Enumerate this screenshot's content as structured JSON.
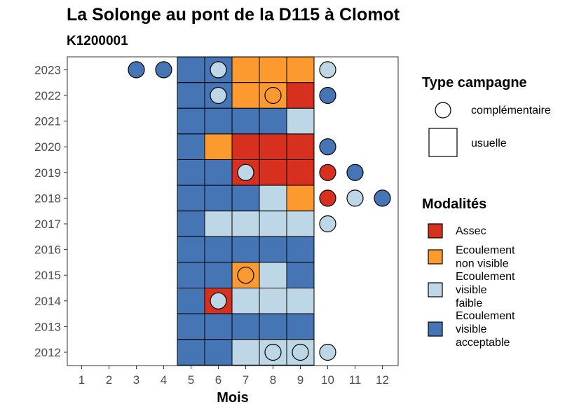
{
  "chart_data": {
    "type": "heatmap",
    "title": "La Solonge au pont de la D115 à Clomot",
    "subtitle": "K1200001",
    "xlabel": "Mois",
    "ylabel": "",
    "x_categories": [
      "1",
      "2",
      "3",
      "4",
      "5",
      "6",
      "7",
      "8",
      "9",
      "10",
      "11",
      "12"
    ],
    "y_categories": [
      "2012",
      "2013",
      "2014",
      "2015",
      "2016",
      "2017",
      "2018",
      "2019",
      "2020",
      "2021",
      "2022",
      "2023"
    ],
    "colors": {
      "assec": "#d7301f",
      "non_visible": "#fd9a2f",
      "faible": "#bdd7e7",
      "acceptable": "#4575b4"
    },
    "legend_shape": {
      "title": "Type campagne",
      "items": [
        {
          "shape": "circle",
          "label": "complémentaire"
        },
        {
          "shape": "square",
          "label": "usuelle"
        }
      ]
    },
    "legend_fill": {
      "title": "Modalités",
      "items": [
        {
          "key": "assec",
          "lines": [
            "Assec"
          ]
        },
        {
          "key": "non_visible",
          "lines": [
            "Ecoulement",
            "non visible"
          ]
        },
        {
          "key": "faible",
          "lines": [
            "Ecoulement",
            "visible",
            "faible"
          ]
        },
        {
          "key": "acceptable",
          "lines": [
            "Ecoulement",
            "visible",
            "acceptable"
          ]
        }
      ]
    },
    "observations": [
      {
        "year": 2023,
        "month": 3,
        "type": "complémentaire",
        "modalite": "acceptable"
      },
      {
        "year": 2023,
        "month": 4,
        "type": "complémentaire",
        "modalite": "acceptable"
      },
      {
        "year": 2023,
        "month": 5,
        "type": "usuelle",
        "modalite": "acceptable"
      },
      {
        "year": 2023,
        "month": 6,
        "type": "usuelle",
        "modalite": "acceptable"
      },
      {
        "year": 2023,
        "month": 6,
        "type": "complémentaire",
        "modalite": "faible"
      },
      {
        "year": 2023,
        "month": 7,
        "type": "usuelle",
        "modalite": "non_visible"
      },
      {
        "year": 2023,
        "month": 8,
        "type": "usuelle",
        "modalite": "non_visible"
      },
      {
        "year": 2023,
        "month": 9,
        "type": "usuelle",
        "modalite": "non_visible"
      },
      {
        "year": 2023,
        "month": 10,
        "type": "complémentaire",
        "modalite": "faible"
      },
      {
        "year": 2022,
        "month": 5,
        "type": "usuelle",
        "modalite": "acceptable"
      },
      {
        "year": 2022,
        "month": 6,
        "type": "usuelle",
        "modalite": "acceptable"
      },
      {
        "year": 2022,
        "month": 6,
        "type": "complémentaire",
        "modalite": "faible"
      },
      {
        "year": 2022,
        "month": 7,
        "type": "usuelle",
        "modalite": "non_visible"
      },
      {
        "year": 2022,
        "month": 8,
        "type": "usuelle",
        "modalite": "non_visible"
      },
      {
        "year": 2022,
        "month": 8,
        "type": "complémentaire",
        "modalite": "non_visible"
      },
      {
        "year": 2022,
        "month": 9,
        "type": "usuelle",
        "modalite": "assec"
      },
      {
        "year": 2022,
        "month": 10,
        "type": "complémentaire",
        "modalite": "acceptable"
      },
      {
        "year": 2021,
        "month": 5,
        "type": "usuelle",
        "modalite": "acceptable"
      },
      {
        "year": 2021,
        "month": 6,
        "type": "usuelle",
        "modalite": "acceptable"
      },
      {
        "year": 2021,
        "month": 7,
        "type": "usuelle",
        "modalite": "acceptable"
      },
      {
        "year": 2021,
        "month": 8,
        "type": "usuelle",
        "modalite": "acceptable"
      },
      {
        "year": 2021,
        "month": 9,
        "type": "usuelle",
        "modalite": "faible"
      },
      {
        "year": 2020,
        "month": 5,
        "type": "usuelle",
        "modalite": "acceptable"
      },
      {
        "year": 2020,
        "month": 6,
        "type": "usuelle",
        "modalite": "non_visible"
      },
      {
        "year": 2020,
        "month": 7,
        "type": "usuelle",
        "modalite": "assec"
      },
      {
        "year": 2020,
        "month": 8,
        "type": "usuelle",
        "modalite": "assec"
      },
      {
        "year": 2020,
        "month": 9,
        "type": "usuelle",
        "modalite": "assec"
      },
      {
        "year": 2020,
        "month": 10,
        "type": "complémentaire",
        "modalite": "acceptable"
      },
      {
        "year": 2019,
        "month": 5,
        "type": "usuelle",
        "modalite": "acceptable"
      },
      {
        "year": 2019,
        "month": 6,
        "type": "usuelle",
        "modalite": "acceptable"
      },
      {
        "year": 2019,
        "month": 7,
        "type": "usuelle",
        "modalite": "assec"
      },
      {
        "year": 2019,
        "month": 7,
        "type": "complémentaire",
        "modalite": "faible"
      },
      {
        "year": 2019,
        "month": 8,
        "type": "usuelle",
        "modalite": "assec"
      },
      {
        "year": 2019,
        "month": 9,
        "type": "usuelle",
        "modalite": "assec"
      },
      {
        "year": 2019,
        "month": 10,
        "type": "complémentaire",
        "modalite": "assec"
      },
      {
        "year": 2019,
        "month": 11,
        "type": "complémentaire",
        "modalite": "acceptable"
      },
      {
        "year": 2018,
        "month": 5,
        "type": "usuelle",
        "modalite": "acceptable"
      },
      {
        "year": 2018,
        "month": 6,
        "type": "usuelle",
        "modalite": "acceptable"
      },
      {
        "year": 2018,
        "month": 7,
        "type": "usuelle",
        "modalite": "acceptable"
      },
      {
        "year": 2018,
        "month": 8,
        "type": "usuelle",
        "modalite": "faible"
      },
      {
        "year": 2018,
        "month": 9,
        "type": "usuelle",
        "modalite": "non_visible"
      },
      {
        "year": 2018,
        "month": 10,
        "type": "complémentaire",
        "modalite": "assec"
      },
      {
        "year": 2018,
        "month": 11,
        "type": "complémentaire",
        "modalite": "faible"
      },
      {
        "year": 2018,
        "month": 12,
        "type": "complémentaire",
        "modalite": "acceptable"
      },
      {
        "year": 2017,
        "month": 5,
        "type": "usuelle",
        "modalite": "acceptable"
      },
      {
        "year": 2017,
        "month": 6,
        "type": "usuelle",
        "modalite": "faible"
      },
      {
        "year": 2017,
        "month": 7,
        "type": "usuelle",
        "modalite": "faible"
      },
      {
        "year": 2017,
        "month": 8,
        "type": "usuelle",
        "modalite": "faible"
      },
      {
        "year": 2017,
        "month": 9,
        "type": "usuelle",
        "modalite": "faible"
      },
      {
        "year": 2017,
        "month": 10,
        "type": "complémentaire",
        "modalite": "faible"
      },
      {
        "year": 2016,
        "month": 5,
        "type": "usuelle",
        "modalite": "acceptable"
      },
      {
        "year": 2016,
        "month": 6,
        "type": "usuelle",
        "modalite": "acceptable"
      },
      {
        "year": 2016,
        "month": 7,
        "type": "usuelle",
        "modalite": "acceptable"
      },
      {
        "year": 2016,
        "month": 8,
        "type": "usuelle",
        "modalite": "acceptable"
      },
      {
        "year": 2016,
        "month": 9,
        "type": "usuelle",
        "modalite": "acceptable"
      },
      {
        "year": 2015,
        "month": 5,
        "type": "usuelle",
        "modalite": "acceptable"
      },
      {
        "year": 2015,
        "month": 6,
        "type": "usuelle",
        "modalite": "acceptable"
      },
      {
        "year": 2015,
        "month": 7,
        "type": "usuelle",
        "modalite": "non_visible"
      },
      {
        "year": 2015,
        "month": 7,
        "type": "complémentaire",
        "modalite": "non_visible"
      },
      {
        "year": 2015,
        "month": 8,
        "type": "usuelle",
        "modalite": "faible"
      },
      {
        "year": 2015,
        "month": 9,
        "type": "usuelle",
        "modalite": "acceptable"
      },
      {
        "year": 2014,
        "month": 5,
        "type": "usuelle",
        "modalite": "acceptable"
      },
      {
        "year": 2014,
        "month": 6,
        "type": "usuelle",
        "modalite": "assec"
      },
      {
        "year": 2014,
        "month": 6,
        "type": "complémentaire",
        "modalite": "faible"
      },
      {
        "year": 2014,
        "month": 7,
        "type": "usuelle",
        "modalite": "faible"
      },
      {
        "year": 2014,
        "month": 8,
        "type": "usuelle",
        "modalite": "faible"
      },
      {
        "year": 2014,
        "month": 9,
        "type": "usuelle",
        "modalite": "faible"
      },
      {
        "year": 2013,
        "month": 5,
        "type": "usuelle",
        "modalite": "acceptable"
      },
      {
        "year": 2013,
        "month": 6,
        "type": "usuelle",
        "modalite": "acceptable"
      },
      {
        "year": 2013,
        "month": 7,
        "type": "usuelle",
        "modalite": "acceptable"
      },
      {
        "year": 2013,
        "month": 8,
        "type": "usuelle",
        "modalite": "acceptable"
      },
      {
        "year": 2013,
        "month": 9,
        "type": "usuelle",
        "modalite": "acceptable"
      },
      {
        "year": 2012,
        "month": 5,
        "type": "usuelle",
        "modalite": "acceptable"
      },
      {
        "year": 2012,
        "month": 6,
        "type": "usuelle",
        "modalite": "acceptable"
      },
      {
        "year": 2012,
        "month": 7,
        "type": "usuelle",
        "modalite": "faible"
      },
      {
        "year": 2012,
        "month": 8,
        "type": "usuelle",
        "modalite": "faible"
      },
      {
        "year": 2012,
        "month": 8,
        "type": "complémentaire",
        "modalite": "faible"
      },
      {
        "year": 2012,
        "month": 9,
        "type": "usuelle",
        "modalite": "faible"
      },
      {
        "year": 2012,
        "month": 9,
        "type": "complémentaire",
        "modalite": "faible"
      },
      {
        "year": 2012,
        "month": 10,
        "type": "complémentaire",
        "modalite": "faible"
      }
    ]
  }
}
